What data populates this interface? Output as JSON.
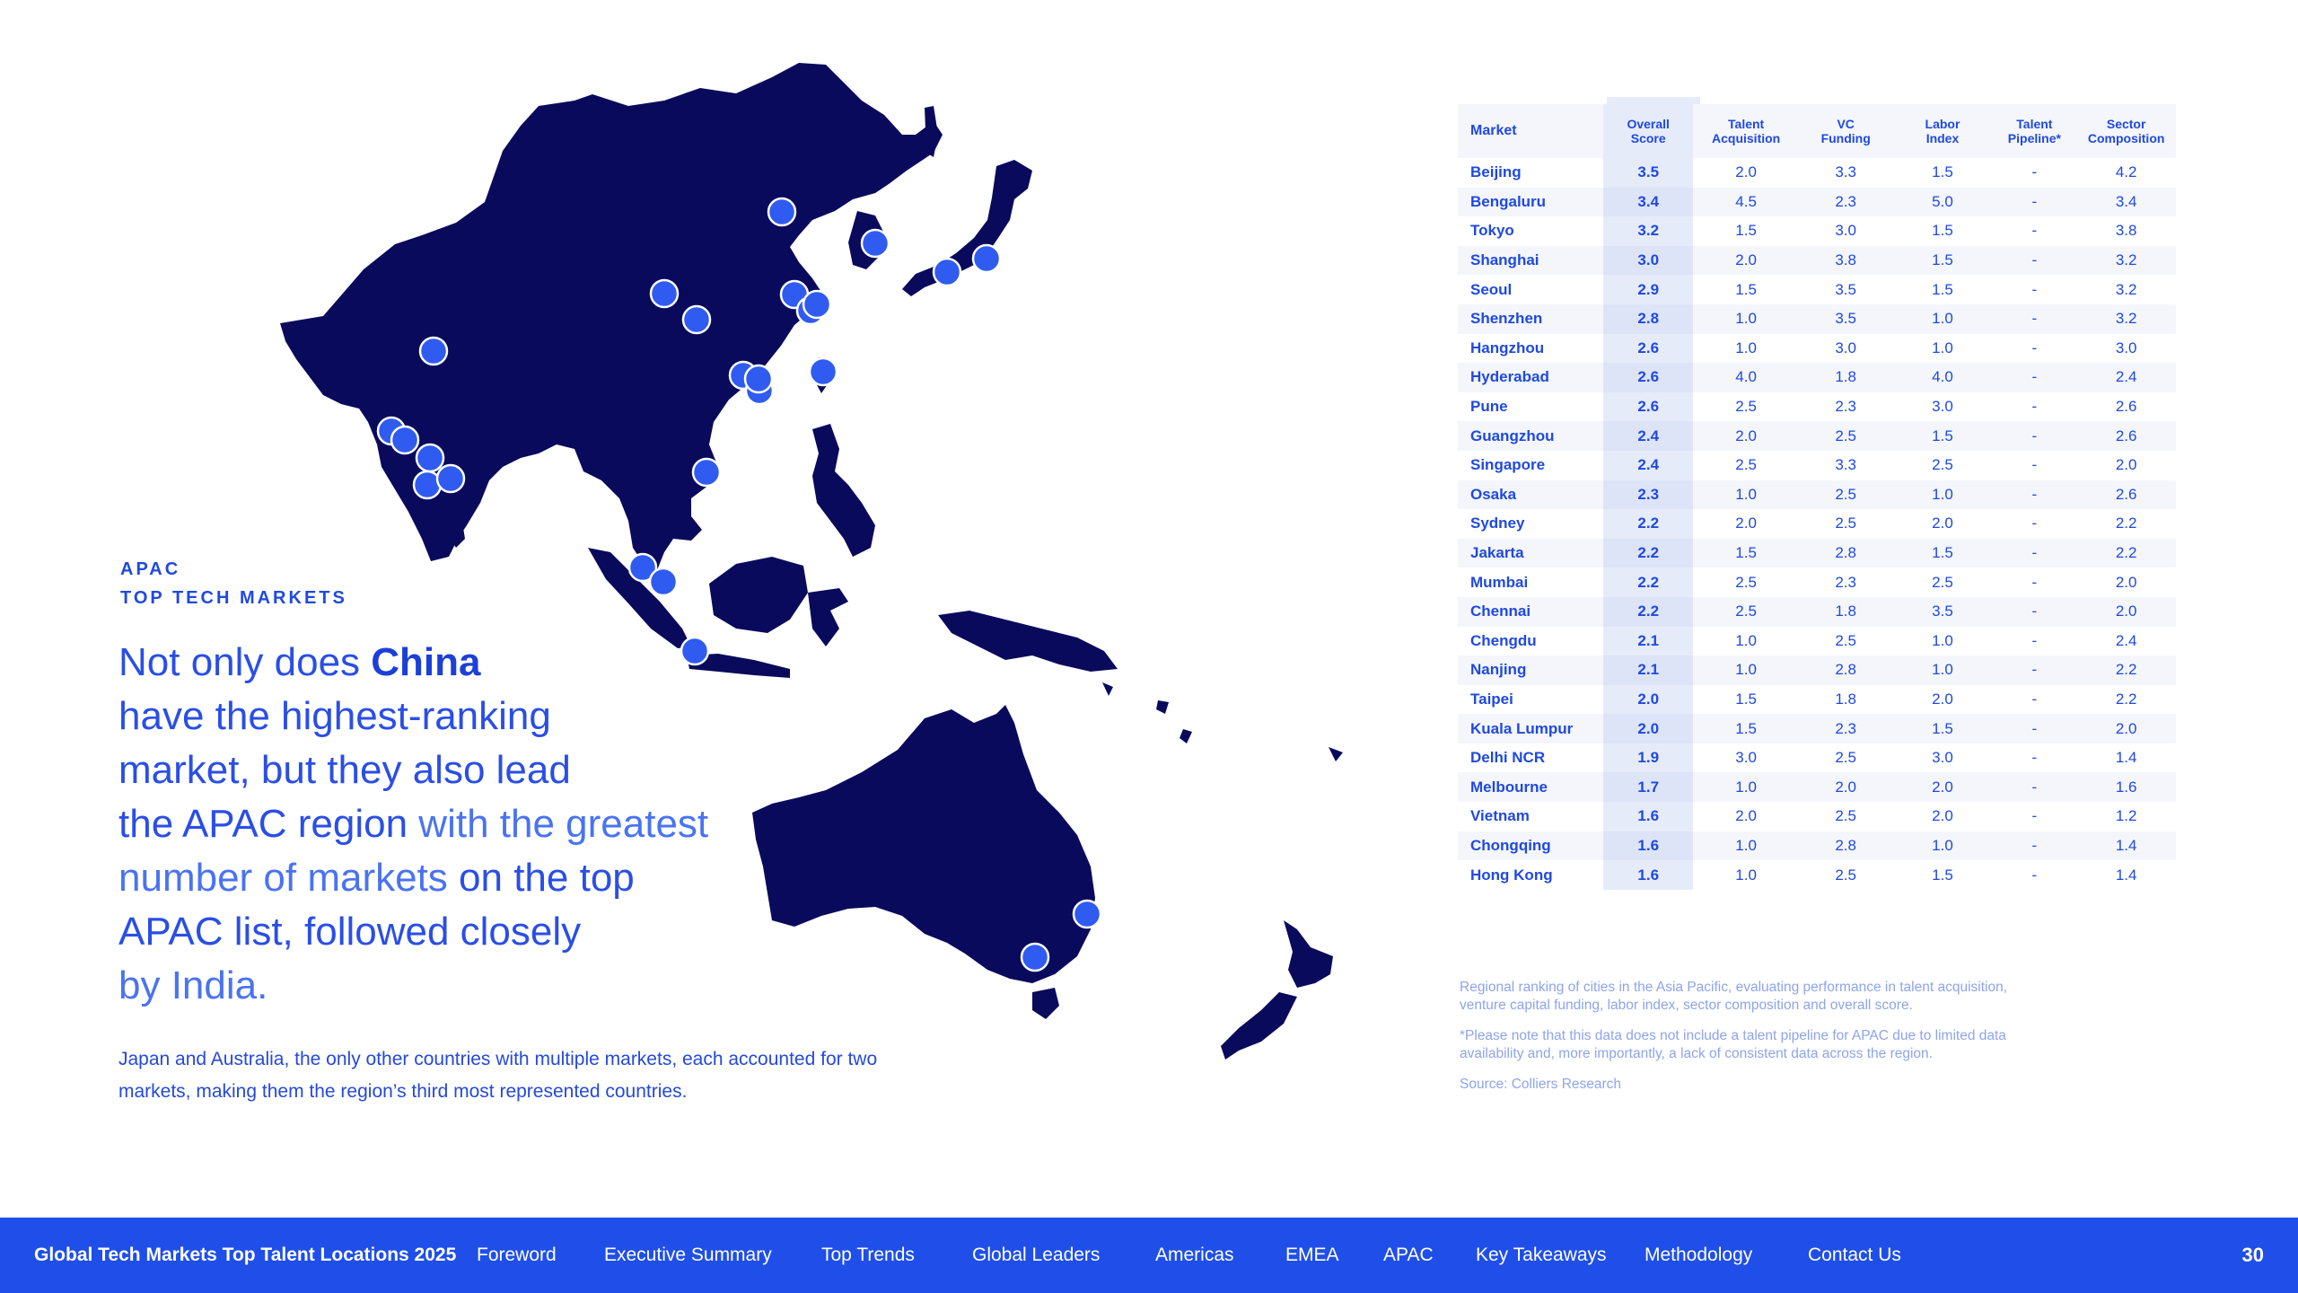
{
  "kicker": {
    "line1": "APAC",
    "line2": "TOP TECH MARKETS"
  },
  "headline": {
    "p1": "Not only does ",
    "p2": "China",
    "p3": "have the highest-ranking",
    "p4": "market, but they also lead",
    "p5": "the APAC region",
    "p6": " with the greatest",
    "p7": "number of markets",
    "p8": " on the top",
    "p9": "APAC list, followed closely",
    "p10": "by India."
  },
  "body_text": "Japan and Australia, the only other countries with multiple markets, each accounted for two markets, making them the region’s third most represented countries.",
  "table": {
    "headers": {
      "market": "Market",
      "overall": [
        "Overall",
        "Score"
      ],
      "talent_acq": [
        "Talent",
        "Acquisition"
      ],
      "vc": [
        "VC",
        "Funding"
      ],
      "labor": [
        "Labor",
        "Index"
      ],
      "pipeline": [
        "Talent",
        "Pipeline*"
      ],
      "sector": [
        "Sector",
        "Composition"
      ]
    },
    "rows": [
      [
        "Beijing",
        "3.5",
        "2.0",
        "3.3",
        "1.5",
        "-",
        "4.2"
      ],
      [
        "Bengaluru",
        "3.4",
        "4.5",
        "2.3",
        "5.0",
        "-",
        "3.4"
      ],
      [
        "Tokyo",
        "3.2",
        "1.5",
        "3.0",
        "1.5",
        "-",
        "3.8"
      ],
      [
        "Shanghai",
        "3.0",
        "2.0",
        "3.8",
        "1.5",
        "-",
        "3.2"
      ],
      [
        "Seoul",
        "2.9",
        "1.5",
        "3.5",
        "1.5",
        "-",
        "3.2"
      ],
      [
        "Shenzhen",
        "2.8",
        "1.0",
        "3.5",
        "1.0",
        "-",
        "3.2"
      ],
      [
        "Hangzhou",
        "2.6",
        "1.0",
        "3.0",
        "1.0",
        "-",
        "3.0"
      ],
      [
        "Hyderabad",
        "2.6",
        "4.0",
        "1.8",
        "4.0",
        "-",
        "2.4"
      ],
      [
        "Pune",
        "2.6",
        "2.5",
        "2.3",
        "3.0",
        "-",
        "2.6"
      ],
      [
        "Guangzhou",
        "2.4",
        "2.0",
        "2.5",
        "1.5",
        "-",
        "2.6"
      ],
      [
        "Singapore",
        "2.4",
        "2.5",
        "3.3",
        "2.5",
        "-",
        "2.0"
      ],
      [
        "Osaka",
        "2.3",
        "1.0",
        "2.5",
        "1.0",
        "-",
        "2.6"
      ],
      [
        "Sydney",
        "2.2",
        "2.0",
        "2.5",
        "2.0",
        "-",
        "2.2"
      ],
      [
        "Jakarta",
        "2.2",
        "1.5",
        "2.8",
        "1.5",
        "-",
        "2.2"
      ],
      [
        "Mumbai",
        "2.2",
        "2.5",
        "2.3",
        "2.5",
        "-",
        "2.0"
      ],
      [
        "Chennai",
        "2.2",
        "2.5",
        "1.8",
        "3.5",
        "-",
        "2.0"
      ],
      [
        "Chengdu",
        "2.1",
        "1.0",
        "2.5",
        "1.0",
        "-",
        "2.4"
      ],
      [
        "Nanjing",
        "2.1",
        "1.0",
        "2.8",
        "1.0",
        "-",
        "2.2"
      ],
      [
        "Taipei",
        "2.0",
        "1.5",
        "1.8",
        "2.0",
        "-",
        "2.2"
      ],
      [
        "Kuala Lumpur",
        "2.0",
        "1.5",
        "2.3",
        "1.5",
        "-",
        "2.0"
      ],
      [
        "Delhi NCR",
        "1.9",
        "3.0",
        "2.5",
        "3.0",
        "-",
        "1.4"
      ],
      [
        "Melbourne",
        "1.7",
        "1.0",
        "2.0",
        "2.0",
        "-",
        "1.6"
      ],
      [
        "Vietnam",
        "1.6",
        "2.0",
        "2.5",
        "2.0",
        "-",
        "1.2"
      ],
      [
        "Chongqing",
        "1.6",
        "1.0",
        "2.8",
        "1.0",
        "-",
        "1.4"
      ],
      [
        "Hong Kong",
        "1.6",
        "1.0",
        "2.5",
        "1.5",
        "-",
        "1.4"
      ]
    ]
  },
  "notes": {
    "caption": "Regional ranking of cities in the Asia Pacific, evaluating performance in talent acquisition, venture capital funding, labor index, sector composition and overall score.",
    "footnote": "*Please note that this data does not include a talent pipeline for APAC due to limited data availability and, more importantly, a lack of consistent data across the region.",
    "source": "Source: Colliers Research"
  },
  "navbar": {
    "title": "Global Tech Markets Top Talent Locations 2025",
    "items": [
      "Foreword",
      "Executive Summary",
      "Top Trends",
      "Global Leaders",
      "Americas",
      "EMEA",
      "APAC",
      "Key Takeaways",
      "Methodology",
      "Contact Us"
    ],
    "page_number": "30"
  },
  "colors": {
    "land": "#0a0a5c",
    "marker": "#2f5bf0",
    "accent": "#1f4fe8"
  }
}
